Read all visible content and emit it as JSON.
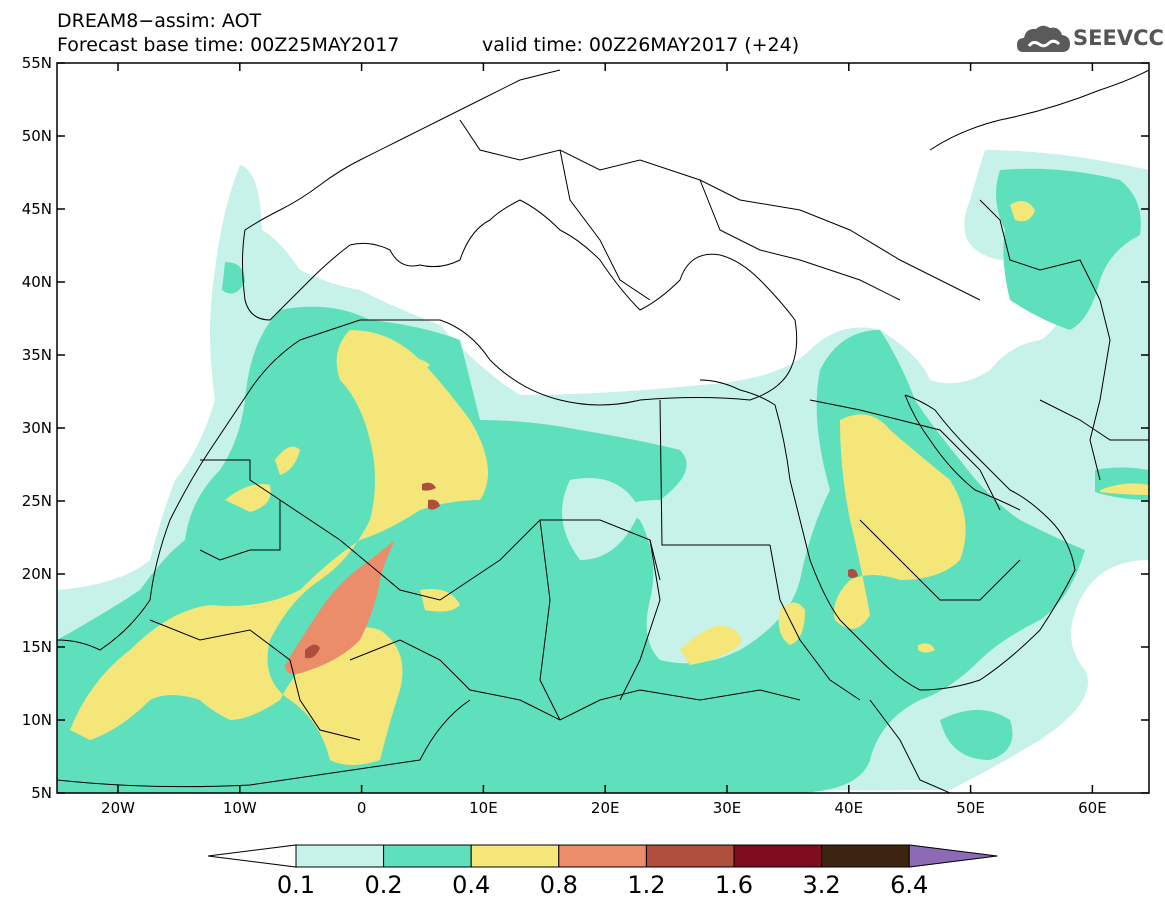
{
  "header": {
    "line1": "DREAM8−assim: AOT",
    "line2": "Forecast base time: 00Z25MAY2017",
    "line3": "valid time: 00Z26MAY2017 (+24)"
  },
  "logo": {
    "text": "SEEVCCC",
    "icon": "cloud-icon"
  },
  "axes": {
    "lat_labels": [
      "55N",
      "50N",
      "45N",
      "40N",
      "35N",
      "30N",
      "25N",
      "20N",
      "15N",
      "10N",
      "5N"
    ],
    "lon_labels": [
      "20W",
      "10W",
      "0",
      "10E",
      "20E",
      "30E",
      "40E",
      "50E",
      "60E"
    ]
  },
  "colorbar": {
    "labels": [
      "0.1",
      "0.2",
      "0.4",
      "0.8",
      "1.2",
      "1.6",
      "3.2",
      "6.4"
    ],
    "colors": [
      "#ffffff",
      "#c6f2ea",
      "#5ee0bc",
      "#f5e67a",
      "#eb8d6a",
      "#b04e3e",
      "#7d0d1f",
      "#3d2412",
      "#8c6ab5"
    ]
  },
  "legend_colors": {
    "c01": "#c6f2ea",
    "c02": "#5ee0bc",
    "c04": "#f5e67a",
    "c08": "#eb8d6a",
    "c12": "#b04e3e"
  }
}
